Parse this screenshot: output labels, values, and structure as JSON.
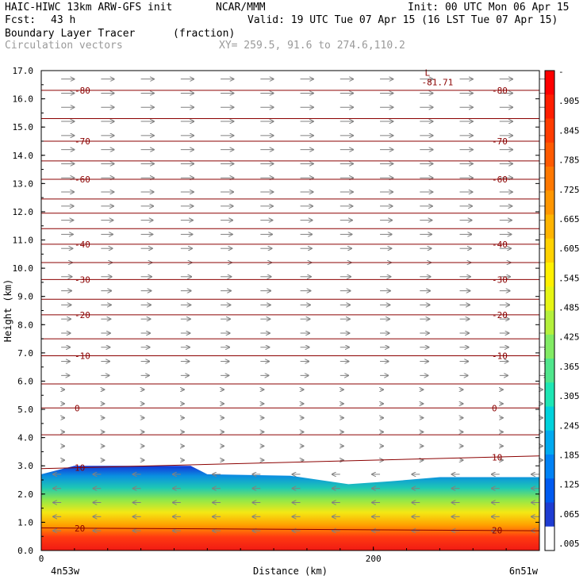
{
  "header": {
    "model": "HAIC-HIWC 13km ARW-GFS init",
    "org": "NCAR/MMM",
    "init": "Init: 00 UTC Mon 06 Apr 15",
    "fcst_label": "Fcst:",
    "fcst_value": "43 h",
    "valid": "Valid: 19 UTC Tue 07 Apr 15 (16 LST Tue 07 Apr 15)",
    "field": "Boundary Layer Tracer",
    "field_units": "(fraction)",
    "vectors": "Circulation vectors",
    "xy": "XY= 259.5, 91.6 to 274.6,110.2"
  },
  "chart_data": {
    "type": "heatmap",
    "ylabel": "Height (km)",
    "xlabel": "Distance (km)",
    "ylim": [
      0,
      17
    ],
    "xlim": [
      0,
      300
    ],
    "yticks": [
      "0.0",
      "1.0",
      "2.0",
      "3.0",
      "4.0",
      "5.0",
      "6.0",
      "7.0",
      "8.0",
      "9.0",
      "10.0",
      "11.0",
      "12.0",
      "13.0",
      "14.0",
      "15.0",
      "16.0",
      "17.0"
    ],
    "xticks": [
      {
        "value": 0,
        "label": "0"
      },
      {
        "value": 200,
        "label": "200"
      }
    ],
    "x_endpoints": {
      "left": "4n53w",
      "right": "6n51w"
    },
    "colorbar_labels": [
      "-",
      ".905",
      ".845",
      ".785",
      ".725",
      ".665",
      ".605",
      ".545",
      ".485",
      ".425",
      ".365",
      ".305",
      ".245",
      ".185",
      ".125",
      ".065",
      ".005"
    ],
    "temperature_contours": [
      {
        "label": "-80",
        "y_left": 16.3,
        "y_right": 16.3
      },
      {
        "label": "-70",
        "y_left": 14.5,
        "y_right": 14.5
      },
      {
        "label": "-60",
        "y_left": 13.15,
        "y_right": 13.15
      },
      {
        "label": "-40",
        "y_left": 10.85,
        "y_right": 10.85
      },
      {
        "label": "-30",
        "y_left": 9.6,
        "y_right": 9.6
      },
      {
        "label": "-20",
        "y_left": 8.35,
        "y_right": 8.35
      },
      {
        "label": "-10",
        "y_left": 6.9,
        "y_right": 6.9
      },
      {
        "label": "0",
        "y_left": 5.05,
        "y_right": 5.05
      },
      {
        "label": "10",
        "y_left": 2.9,
        "y_right": 3.35
      },
      {
        "label": "20",
        "y_left": 0.8,
        "y_right": 0.7
      }
    ],
    "minimum_marker": {
      "symbol": "L",
      "value": "-81.71",
      "x": 230,
      "y": 16.7
    },
    "boundary_layer_top_km": [
      {
        "x": 0,
        "y": 2.7
      },
      {
        "x": 20,
        "y": 3.0
      },
      {
        "x": 90,
        "y": 3.0
      },
      {
        "x": 100,
        "y": 2.7
      },
      {
        "x": 150,
        "y": 2.65
      },
      {
        "x": 185,
        "y": 2.35
      },
      {
        "x": 210,
        "y": 2.45
      },
      {
        "x": 240,
        "y": 2.6
      },
      {
        "x": 300,
        "y": 2.6
      }
    ]
  }
}
